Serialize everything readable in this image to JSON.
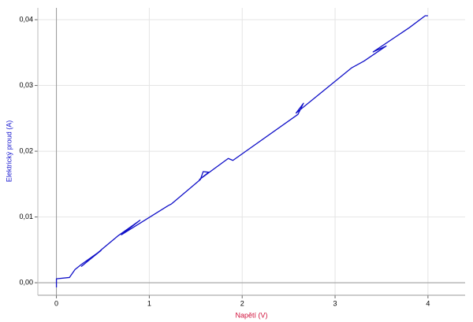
{
  "chart_data": {
    "type": "line",
    "x_label": "Napětí (V)",
    "y_label": "Elektrický proud (A)",
    "x": [
      0,
      0,
      0.14,
      0.2,
      0.27,
      0.48,
      0.27,
      0.66,
      0.9,
      0.7,
      1.2,
      1.24,
      1.55,
      1.58,
      1.64,
      1.54,
      1.85,
      1.9,
      2.6,
      2.66,
      2.58,
      3.18,
      3.31,
      3.55,
      3.41,
      3.8,
      3.97,
      4.0
    ],
    "values": [
      -0.0007,
      0.0006,
      0.0008,
      0.002,
      0.0028,
      0.0049,
      0.0025,
      0.0071,
      0.0095,
      0.0073,
      0.0117,
      0.012,
      0.0157,
      0.0169,
      0.0168,
      0.0157,
      0.0189,
      0.0186,
      0.0256,
      0.0273,
      0.0258,
      0.0327,
      0.0337,
      0.036,
      0.0351,
      0.0388,
      0.0406,
      0.0406
    ],
    "color": "#1010c8",
    "x_label_color": "#d0103a",
    "y_label_color": "#1a1ad0",
    "xlim": [
      -0.2,
      4.4
    ],
    "ylim": [
      -0.0019,
      0.0418
    ],
    "xticks": [
      0,
      1,
      2,
      3,
      4
    ],
    "yticks": [
      {
        "value": 0,
        "label": "0,00"
      },
      {
        "value": 0.01,
        "label": "0,01"
      },
      {
        "value": 0.02,
        "label": "0,02"
      },
      {
        "value": 0.03,
        "label": "0,03"
      },
      {
        "value": 0.04,
        "label": "0,04"
      }
    ],
    "grid": true
  }
}
